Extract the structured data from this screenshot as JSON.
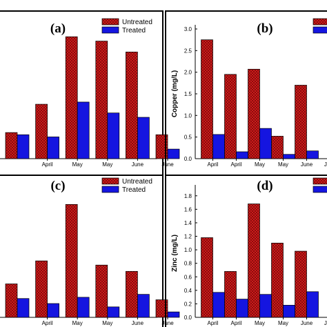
{
  "colors": {
    "untreated": "#dd1f1f",
    "treated": "#1515e0",
    "hatch": "#7a0808"
  },
  "chart_data": [
    {
      "type": "bar",
      "panel_label": "(a)",
      "ylabel": "",
      "categories": [
        "",
        "April",
        "May",
        "May",
        "June",
        "June"
      ],
      "series": [
        {
          "name": "Untreated",
          "values": [
            0.6,
            1.25,
            2.8,
            2.7,
            2.45,
            0.55
          ]
        },
        {
          "name": "Treated",
          "values": [
            0.55,
            0.5,
            1.3,
            1.05,
            0.95,
            0.22
          ]
        }
      ],
      "ylim": [
        0,
        3.2
      ],
      "yticks": [],
      "legend": "top-right"
    },
    {
      "type": "bar",
      "panel_label": "(b)",
      "ylabel": "Copper (mg/L)",
      "categories": [
        "April",
        "April",
        "May",
        "May",
        "June",
        "June"
      ],
      "series": [
        {
          "name": "Untreated",
          "values": [
            2.75,
            1.95,
            2.07,
            0.52,
            1.7,
            0
          ]
        },
        {
          "name": "Treated",
          "values": [
            0.56,
            0.16,
            0.7,
            0.1,
            0.18,
            0
          ]
        }
      ],
      "ylim": [
        0,
        3.0
      ],
      "yticks": [
        "0.0",
        "0.5",
        "1.0",
        "1.5",
        "2.0",
        "2.5",
        "3.0"
      ],
      "legend": "top-right"
    },
    {
      "type": "bar",
      "panel_label": "(c)",
      "ylabel": "",
      "categories": [
        "",
        "April",
        "May",
        "May",
        "June",
        "June"
      ],
      "series": [
        {
          "name": "Untreated",
          "values": [
            0.8,
            1.35,
            2.7,
            1.25,
            1.1,
            0.42
          ]
        },
        {
          "name": "Treated",
          "values": [
            0.45,
            0.33,
            0.48,
            0.25,
            0.55,
            0.13
          ]
        }
      ],
      "ylim": [
        0,
        3.2
      ],
      "yticks": [],
      "legend": "top-right"
    },
    {
      "type": "bar",
      "panel_label": "(d)",
      "ylabel": "Zinc (mg/L)",
      "categories": [
        "April",
        "April",
        "May",
        "May",
        "June",
        "June"
      ],
      "series": [
        {
          "name": "Untreated",
          "values": [
            1.18,
            0.68,
            1.68,
            1.1,
            0.98,
            0
          ]
        },
        {
          "name": "Treated",
          "values": [
            0.37,
            0.27,
            0.34,
            0.18,
            0.38,
            0
          ]
        }
      ],
      "ylim": [
        0,
        1.9
      ],
      "yticks": [
        "0.0",
        "0.2",
        "0.4",
        "0.6",
        "0.8",
        "1.0",
        "1.2",
        "1.4",
        "1.6",
        "1.8"
      ],
      "legend": "top-right"
    }
  ]
}
